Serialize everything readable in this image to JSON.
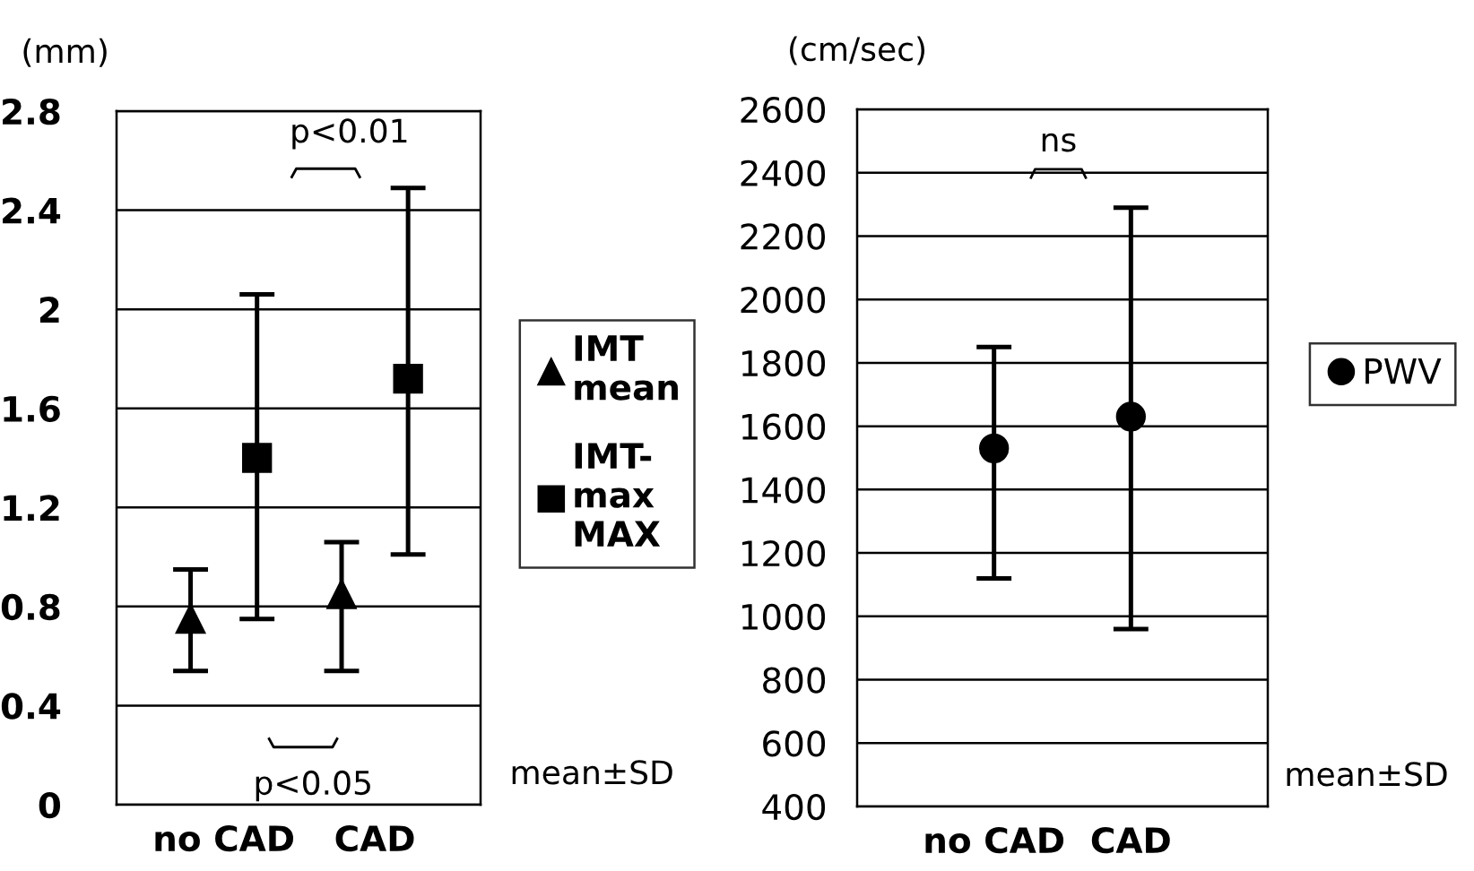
{
  "chart_data": [
    {
      "type": "scatter",
      "ylabel": "(mm)",
      "categories": [
        "no CAD",
        "CAD"
      ],
      "ylim": [
        0,
        2.8
      ],
      "yticks": [
        0,
        0.4,
        0.8,
        1.2,
        1.6,
        2,
        2.4,
        2.8
      ],
      "grid": "y",
      "legend": "right",
      "series": [
        {
          "name": "IMT\nmean",
          "color": "#000000",
          "marker": "triangle",
          "values": [
            0.75,
            0.85
          ],
          "errors": [
            [
              0.54,
              0.95
            ],
            [
              0.54,
              1.06
            ]
          ]
        },
        {
          "name": "IMT-\nmax\nMAX",
          "color": "#000000",
          "marker": "square",
          "values": [
            1.4,
            1.72
          ],
          "errors": [
            [
              0.75,
              2.06
            ],
            [
              1.01,
              2.49
            ]
          ]
        }
      ],
      "annotations": [
        "p<0.01",
        "p<0.05",
        "mean±SD"
      ]
    },
    {
      "type": "scatter",
      "ylabel": "(cm/sec)",
      "categories": [
        "no CAD",
        "CAD"
      ],
      "ylim": [
        400,
        2600
      ],
      "yticks": [
        400,
        600,
        800,
        1000,
        1200,
        1400,
        1600,
        1800,
        2000,
        2200,
        2400,
        2600
      ],
      "grid": "y",
      "legend": "right",
      "series": [
        {
          "name": "PWV",
          "color": "#000000",
          "marker": "circle",
          "values": [
            1530,
            1630
          ],
          "errors": [
            [
              1120,
              1850
            ],
            [
              960,
              2290
            ]
          ]
        }
      ],
      "annotations": [
        "ns",
        "mean±SD"
      ]
    }
  ]
}
